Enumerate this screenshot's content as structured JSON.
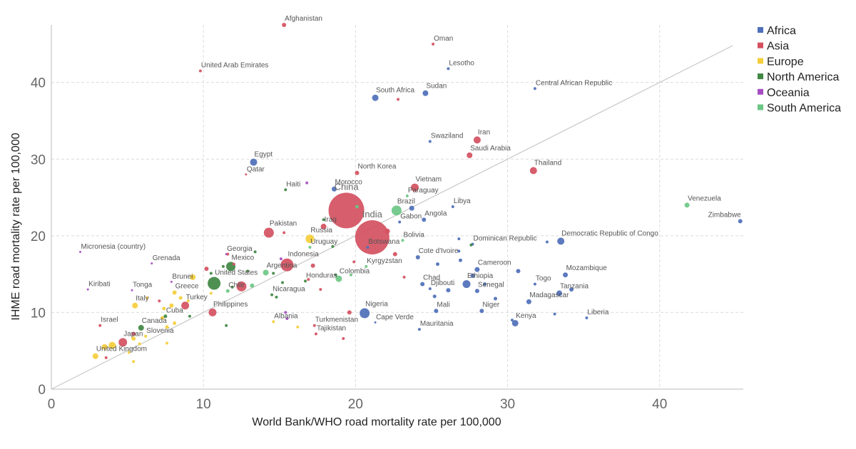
{
  "chart_data": {
    "type": "scatter",
    "title": "",
    "xlabel": "World Bank/WHO road mortality rate per 100,000",
    "ylabel": "IHME road mortality rate per 100,000",
    "xlim": [
      0,
      45.5
    ],
    "ylim": [
      0,
      47.5
    ],
    "x_ticks": [
      0,
      10,
      20,
      30,
      40
    ],
    "y_ticks": [
      0,
      10,
      20,
      30,
      40
    ],
    "grid": true,
    "reference_line": "y = x",
    "legend_position": "top-right",
    "bubble_size_encodes": "population (unlabeled)",
    "series": [
      {
        "name": "Africa",
        "color": "#4E6FB9",
        "points": [
          {
            "label": "South Africa",
            "x": 21.3,
            "y": 38.0,
            "r": 4.5
          },
          {
            "label": "Sudan",
            "x": 24.6,
            "y": 38.6,
            "r": 4
          },
          {
            "label": "Lesotho",
            "x": 26.1,
            "y": 41.8,
            "r": 2
          },
          {
            "label": "Central African Republic",
            "x": 31.8,
            "y": 39.2,
            "r": 2
          },
          {
            "label": "Swaziland",
            "x": 24.9,
            "y": 32.3,
            "r": 2
          },
          {
            "label": "Egypt",
            "x": 13.3,
            "y": 29.6,
            "r": 5
          },
          {
            "label": "Morocco",
            "x": 18.6,
            "y": 26.1,
            "r": 3.5
          },
          {
            "label": "Libya",
            "x": 26.4,
            "y": 23.8,
            "r": 2
          },
          {
            "label": "Angola",
            "x": 24.5,
            "y": 22.1,
            "r": 3
          },
          {
            "label": "Gabon",
            "x": 22.9,
            "y": 21.8,
            "r": 2
          },
          {
            "label": "",
            "x": 23.7,
            "y": 23.6,
            "r": 3.5
          },
          {
            "label": "Botswana",
            "x": 20.8,
            "y": 18.5,
            "r": 2
          },
          {
            "label": "Cote d'Ivoire",
            "x": 24.1,
            "y": 17.2,
            "r": 3
          },
          {
            "label": "Cameroon",
            "x": 28.0,
            "y": 15.6,
            "r": 3.5
          },
          {
            "label": "Ethiopia",
            "x": 27.3,
            "y": 13.7,
            "r": 5.5
          },
          {
            "label": "Chad",
            "x": 24.4,
            "y": 13.7,
            "r": 3
          },
          {
            "label": "Djibouti",
            "x": 24.9,
            "y": 13.1,
            "r": 2
          },
          {
            "label": "Senegal",
            "x": 28.0,
            "y": 12.8,
            "r": 3
          },
          {
            "label": "Mali",
            "x": 25.3,
            "y": 10.2,
            "r": 3
          },
          {
            "label": "Niger",
            "x": 28.3,
            "y": 10.2,
            "r": 3
          },
          {
            "label": "Madagascar",
            "x": 31.4,
            "y": 11.4,
            "r": 3.5
          },
          {
            "label": "Togo",
            "x": 31.8,
            "y": 13.7,
            "r": 2
          },
          {
            "label": "Tanzania",
            "x": 33.4,
            "y": 12.5,
            "r": 4
          },
          {
            "label": "Mozambique",
            "x": 33.8,
            "y": 14.9,
            "r": 3.5
          },
          {
            "label": "Democratic Republic of Congo",
            "x": 33.5,
            "y": 19.3,
            "r": 5
          },
          {
            "label": "Dominican Republic",
            "x": 27.7,
            "y": 18.9,
            "r": 2
          },
          {
            "label": "Kenya",
            "x": 30.5,
            "y": 8.6,
            "r": 4.5
          },
          {
            "label": "Liberia",
            "x": 35.2,
            "y": 9.3,
            "r": 2
          },
          {
            "label": "Nigeria",
            "x": 20.6,
            "y": 9.9,
            "r": 7
          },
          {
            "label": "Cape Verde",
            "x": 21.3,
            "y": 8.7,
            "r": 1.5
          },
          {
            "label": "Mauritania",
            "x": 24.2,
            "y": 7.8,
            "r": 2
          },
          {
            "label": "Zimbabwe",
            "x": 45.3,
            "y": 21.9,
            "r": 3
          },
          {
            "label": "",
            "x": 26.8,
            "y": 19.6,
            "r": 2
          },
          {
            "label": "",
            "x": 26.8,
            "y": 18.0,
            "r": 2
          },
          {
            "label": "",
            "x": 26.9,
            "y": 16.8,
            "r": 2.5
          },
          {
            "label": "",
            "x": 25.4,
            "y": 16.3,
            "r": 2.5
          },
          {
            "label": "",
            "x": 30.7,
            "y": 15.4,
            "r": 3
          },
          {
            "label": "",
            "x": 27.7,
            "y": 14.8,
            "r": 3
          },
          {
            "label": "",
            "x": 25.2,
            "y": 12.1,
            "r": 2.5
          },
          {
            "label": "",
            "x": 29.2,
            "y": 11.8,
            "r": 2.5
          },
          {
            "label": "",
            "x": 28.5,
            "y": 13.7,
            "r": 2.5
          },
          {
            "label": "",
            "x": 34.2,
            "y": 13.0,
            "r": 3
          },
          {
            "label": "",
            "x": 32.6,
            "y": 19.2,
            "r": 2
          },
          {
            "label": "",
            "x": 33.1,
            "y": 9.8,
            "r": 2
          },
          {
            "label": "",
            "x": 30.3,
            "y": 9.0,
            "r": 2
          },
          {
            "label": "",
            "x": 26.1,
            "y": 12.9,
            "r": 3
          }
        ]
      },
      {
        "name": "Asia",
        "color": "#D4505F",
        "points": [
          {
            "label": "Afghanistan",
            "x": 15.3,
            "y": 47.5,
            "r": 3
          },
          {
            "label": "Oman",
            "x": 25.1,
            "y": 45.0,
            "r": 2
          },
          {
            "label": "United Arab Emirates",
            "x": 9.8,
            "y": 41.5,
            "r": 2
          },
          {
            "label": "",
            "x": 22.8,
            "y": 37.8,
            "r": 2
          },
          {
            "label": "Iran",
            "x": 28.0,
            "y": 32.5,
            "r": 5
          },
          {
            "label": "Saudi Arabia",
            "x": 27.5,
            "y": 30.5,
            "r": 4
          },
          {
            "label": "Thailand",
            "x": 31.7,
            "y": 28.5,
            "r": 5
          },
          {
            "label": "North Korea",
            "x": 20.1,
            "y": 28.2,
            "r": 3
          },
          {
            "label": "Qatar",
            "x": 12.8,
            "y": 28.0,
            "r": 1.5
          },
          {
            "label": "Vietnam",
            "x": 23.9,
            "y": 26.3,
            "r": 5.5
          },
          {
            "label": "China",
            "x": 19.4,
            "y": 23.3,
            "r": 25
          },
          {
            "label": "India",
            "x": 21.1,
            "y": 19.8,
            "r": 24
          },
          {
            "label": "Pakistan",
            "x": 14.3,
            "y": 20.4,
            "r": 7
          },
          {
            "label": "Iraq",
            "x": 17.9,
            "y": 21.2,
            "r": 4
          },
          {
            "label": "Indonesia",
            "x": 15.5,
            "y": 16.2,
            "r": 9
          },
          {
            "label": "Turkey",
            "x": 8.8,
            "y": 10.9,
            "r": 5.5
          },
          {
            "label": "Philippines",
            "x": 10.6,
            "y": 10.0,
            "r": 5.5
          },
          {
            "label": "",
            "x": 12.5,
            "y": 13.4,
            "r": 7
          },
          {
            "label": "Japan",
            "x": 4.7,
            "y": 6.1,
            "r": 6
          },
          {
            "label": "Israel",
            "x": 3.2,
            "y": 8.3,
            "r": 2
          },
          {
            "label": "Turkmenistan",
            "x": 17.3,
            "y": 8.3,
            "r": 2
          },
          {
            "label": "Tajikistan",
            "x": 17.4,
            "y": 7.2,
            "r": 2
          },
          {
            "label": "",
            "x": 19.6,
            "y": 10.0,
            "r": 3
          },
          {
            "label": "",
            "x": 22.1,
            "y": 20.6,
            "r": 3.5
          },
          {
            "label": "",
            "x": 22.6,
            "y": 17.6,
            "r": 3
          },
          {
            "label": "",
            "x": 23.2,
            "y": 14.6,
            "r": 2
          },
          {
            "label": "",
            "x": 16.9,
            "y": 14.3,
            "r": 2
          },
          {
            "label": "",
            "x": 17.2,
            "y": 16.1,
            "r": 3
          },
          {
            "label": "",
            "x": 17.7,
            "y": 13.0,
            "r": 2
          },
          {
            "label": "",
            "x": 19.9,
            "y": 16.6,
            "r": 2
          },
          {
            "label": "",
            "x": 10.2,
            "y": 15.7,
            "r": 3
          },
          {
            "label": "",
            "x": 11.6,
            "y": 17.6,
            "r": 2
          },
          {
            "label": "",
            "x": 15.3,
            "y": 20.4,
            "r": 2
          },
          {
            "label": "",
            "x": 19.2,
            "y": 6.6,
            "r": 2
          },
          {
            "label": "",
            "x": 3.6,
            "y": 4.1,
            "r": 2
          },
          {
            "label": "",
            "x": 7.1,
            "y": 11.5,
            "r": 2
          },
          {
            "label": "",
            "x": 5.4,
            "y": 7.2,
            "r": 3
          },
          {
            "label": "",
            "x": 12.0,
            "y": 16.3,
            "r": 2
          }
        ]
      },
      {
        "name": "Europe",
        "color": "#F5CE3A",
        "points": [
          {
            "label": "Russia",
            "x": 17.0,
            "y": 19.6,
            "r": 6
          },
          {
            "label": "United Kingdom",
            "x": 2.9,
            "y": 4.3,
            "r": 4
          },
          {
            "label": "Italy",
            "x": 5.5,
            "y": 10.9,
            "r": 4
          },
          {
            "label": "Greece",
            "x": 8.1,
            "y": 12.6,
            "r": 3
          },
          {
            "label": "Slovenia",
            "x": 6.2,
            "y": 6.9,
            "r": 2
          },
          {
            "label": "Albania",
            "x": 14.6,
            "y": 8.8,
            "r": 2
          },
          {
            "label": "",
            "x": 3.5,
            "y": 5.5,
            "r": 4
          },
          {
            "label": "",
            "x": 4.0,
            "y": 5.7,
            "r": 5
          },
          {
            "label": "",
            "x": 5.4,
            "y": 6.6,
            "r": 3
          },
          {
            "label": "",
            "x": 5.1,
            "y": 4.8,
            "r": 2
          },
          {
            "label": "",
            "x": 5.4,
            "y": 3.6,
            "r": 2
          },
          {
            "label": "",
            "x": 6.3,
            "y": 11.9,
            "r": 2
          },
          {
            "label": "",
            "x": 7.3,
            "y": 9.3,
            "r": 2.5
          },
          {
            "label": "",
            "x": 7.4,
            "y": 10.5,
            "r": 2.5
          },
          {
            "label": "",
            "x": 7.9,
            "y": 10.9,
            "r": 3
          },
          {
            "label": "",
            "x": 7.6,
            "y": 8.1,
            "r": 2.5
          },
          {
            "label": "",
            "x": 8.1,
            "y": 8.6,
            "r": 2.5
          },
          {
            "label": "",
            "x": 8.5,
            "y": 11.9,
            "r": 2.5
          },
          {
            "label": "",
            "x": 7.6,
            "y": 6.0,
            "r": 2
          },
          {
            "label": "",
            "x": 9.0,
            "y": 11.5,
            "r": 2
          },
          {
            "label": "",
            "x": 9.3,
            "y": 14.6,
            "r": 4
          },
          {
            "label": "",
            "x": 10.5,
            "y": 12.5,
            "r": 2
          },
          {
            "label": "",
            "x": 16.2,
            "y": 8.1,
            "r": 2
          },
          {
            "label": "",
            "x": 5.8,
            "y": 5.9,
            "r": 2
          }
        ]
      },
      {
        "name": "North America",
        "color": "#3F8743",
        "points": [
          {
            "label": "United States",
            "x": 10.7,
            "y": 13.8,
            "r": 9
          },
          {
            "label": "Mexico",
            "x": 11.8,
            "y": 16.0,
            "r": 6.5
          },
          {
            "label": "Canada",
            "x": 5.9,
            "y": 8.0,
            "r": 4
          },
          {
            "label": "Haiti",
            "x": 15.4,
            "y": 26.0,
            "r": 2
          },
          {
            "label": "Honduras",
            "x": 16.7,
            "y": 14.1,
            "r": 2
          },
          {
            "label": "Nicaragua",
            "x": 14.5,
            "y": 12.3,
            "r": 2
          },
          {
            "label": "Cuba",
            "x": 7.5,
            "y": 9.5,
            "r": 2.5
          },
          {
            "label": "",
            "x": 9.1,
            "y": 9.5,
            "r": 2
          },
          {
            "label": "",
            "x": 10.5,
            "y": 15.1,
            "r": 2
          },
          {
            "label": "",
            "x": 11.3,
            "y": 16.0,
            "r": 2
          },
          {
            "label": "",
            "x": 11.9,
            "y": 13.3,
            "r": 2
          },
          {
            "label": "",
            "x": 12.9,
            "y": 15.4,
            "r": 2
          },
          {
            "label": "",
            "x": 13.4,
            "y": 17.9,
            "r": 2
          },
          {
            "label": "",
            "x": 14.6,
            "y": 15.1,
            "r": 2
          },
          {
            "label": "",
            "x": 15.2,
            "y": 13.9,
            "r": 2
          },
          {
            "label": "",
            "x": 18.5,
            "y": 18.6,
            "r": 2
          },
          {
            "label": "",
            "x": 18.7,
            "y": 14.9,
            "r": 2
          },
          {
            "label": "",
            "x": 17.9,
            "y": 22.1,
            "r": 2
          },
          {
            "label": "",
            "x": 14.8,
            "y": 12.0,
            "r": 2
          },
          {
            "label": "",
            "x": 11.5,
            "y": 8.3,
            "r": 2
          },
          {
            "label": "",
            "x": 27.6,
            "y": 18.8,
            "r": 2
          }
        ]
      },
      {
        "name": "Oceania",
        "color": "#A64DC2",
        "points": [
          {
            "label": "Micronesia (country)",
            "x": 1.9,
            "y": 17.9,
            "r": 1.5
          },
          {
            "label": "Kiribati",
            "x": 2.4,
            "y": 13.0,
            "r": 1.5
          },
          {
            "label": "Tonga",
            "x": 5.3,
            "y": 12.9,
            "r": 1.5
          },
          {
            "label": "Grenada",
            "x": 6.6,
            "y": 16.4,
            "r": 1.5
          },
          {
            "label": "Brunei",
            "x": 7.9,
            "y": 14.0,
            "r": 1.5
          },
          {
            "label": "Georgia",
            "x": 11.5,
            "y": 17.6,
            "r": 1.5
          },
          {
            "label": "",
            "x": 16.8,
            "y": 26.9,
            "r": 2
          },
          {
            "label": "",
            "x": 15.1,
            "y": 17.0,
            "r": 2
          },
          {
            "label": "",
            "x": 15.4,
            "y": 10.0,
            "r": 2
          },
          {
            "label": "",
            "x": 15.5,
            "y": 9.2,
            "r": 2
          }
        ]
      },
      {
        "name": "South America",
        "color": "#6BC784",
        "points": [
          {
            "label": "Brazil",
            "x": 22.7,
            "y": 23.3,
            "r": 7
          },
          {
            "label": "Paraguay",
            "x": 23.4,
            "y": 25.2,
            "r": 2
          },
          {
            "label": "Bolivia",
            "x": 23.1,
            "y": 19.4,
            "r": 2
          },
          {
            "label": "Uruguay",
            "x": 17.0,
            "y": 18.5,
            "r": 2
          },
          {
            "label": "Argentina",
            "x": 14.1,
            "y": 15.2,
            "r": 4
          },
          {
            "label": "Chile",
            "x": 11.6,
            "y": 12.8,
            "r": 2.5
          },
          {
            "label": "Colombia",
            "x": 18.9,
            "y": 14.4,
            "r": 4.5
          },
          {
            "label": "Kyrgyzstan",
            "x": 20.7,
            "y": 16.0,
            "r": 2
          },
          {
            "label": "Venezuela",
            "x": 41.8,
            "y": 24.0,
            "r": 3.5
          },
          {
            "label": "",
            "x": 20.1,
            "y": 23.8,
            "r": 2.5
          },
          {
            "label": "",
            "x": 13.2,
            "y": 13.5,
            "r": 3
          },
          {
            "label": "",
            "x": 19.7,
            "y": 14.9,
            "r": 2
          }
        ]
      }
    ]
  }
}
